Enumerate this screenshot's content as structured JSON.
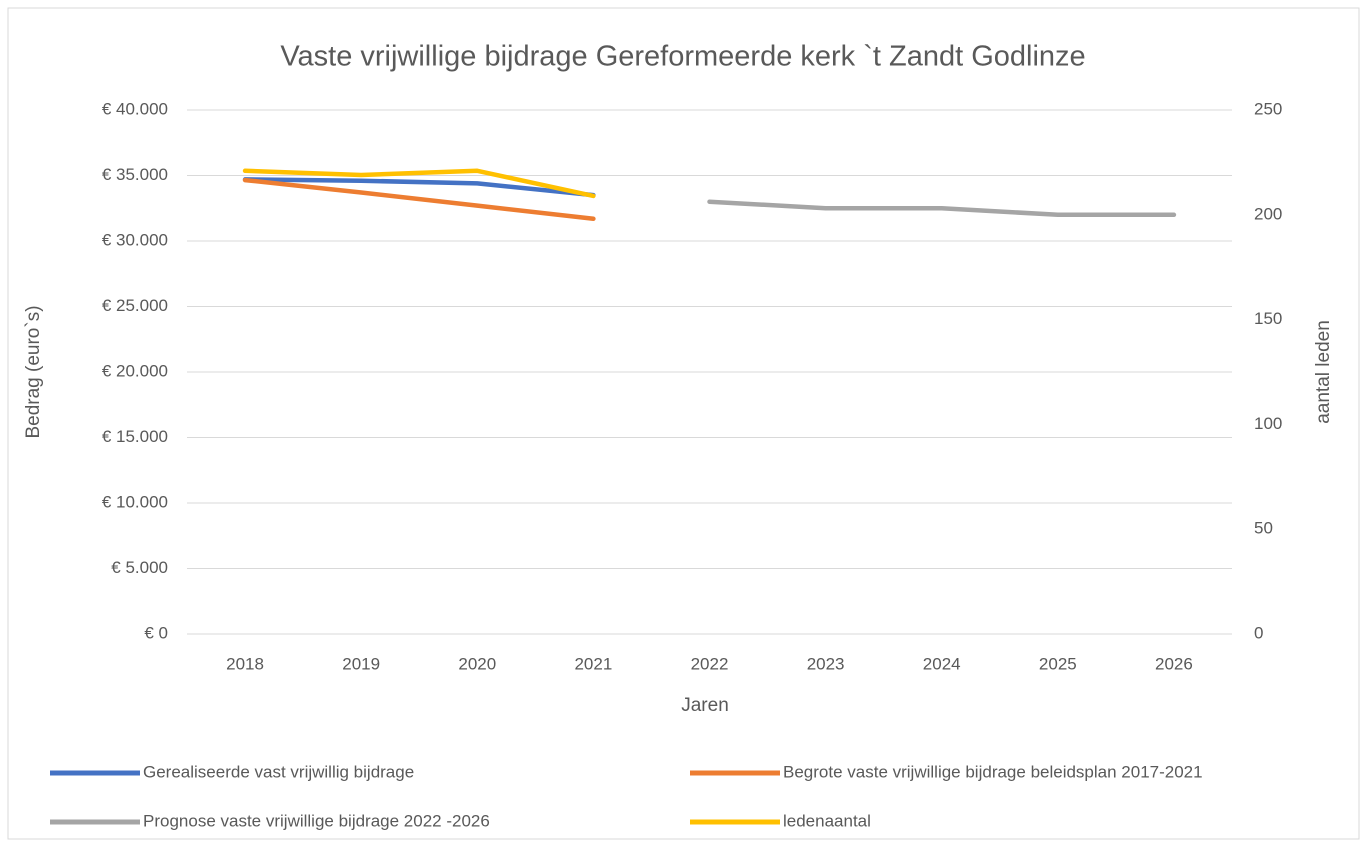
{
  "chart_data": {
    "type": "line",
    "title": "Vaste vrijwillige bijdrage Gereformeerde kerk `t Zandt Godlinze",
    "x_label": "Jaren",
    "y_label": "Bedrag (euro`s)",
    "y2_label": "aantal leden",
    "categories": [
      "2018",
      "2019",
      "2020",
      "2021",
      "2022",
      "2023",
      "2024",
      "2025",
      "2026"
    ],
    "series": [
      {
        "name": "Gerealiseerde vast vrijwillig bijdrage",
        "color": "#4472c4",
        "values": [
          34700,
          34600,
          34400,
          33500,
          null,
          null,
          null,
          null,
          null
        ]
      },
      {
        "name": "Begrote vaste vrijwillige bijdrage beleidsplan 2017-2021",
        "color": "#ed7d31",
        "values": [
          34650,
          33700,
          32700,
          31700,
          null,
          null,
          null,
          null,
          null
        ]
      },
      {
        "name": "Prognose vaste vrijwillige bijdrage 2022 -2026",
        "color": "#a5a5a5",
        "values": [
          null,
          null,
          null,
          null,
          33000,
          32500,
          32500,
          32000,
          32000
        ]
      },
      {
        "name": "ledenaantal",
        "color": "#ffc000",
        "axis": "y2",
        "values": [
          221,
          219,
          221,
          209,
          null,
          null,
          null,
          null,
          null
        ]
      }
    ],
    "ylim": [
      0,
      40000
    ],
    "yticks": [
      {
        "value": 0,
        "label": "€ 0"
      },
      {
        "value": 5000,
        "label": "€ 5.000"
      },
      {
        "value": 10000,
        "label": "€ 10.000"
      },
      {
        "value": 15000,
        "label": "€ 15.000"
      },
      {
        "value": 20000,
        "label": "€ 20.000"
      },
      {
        "value": 25000,
        "label": "€ 25.000"
      },
      {
        "value": 30000,
        "label": "€ 30.000"
      },
      {
        "value": 35000,
        "label": "€ 35.000"
      },
      {
        "value": 40000,
        "label": "€ 40.000"
      }
    ],
    "y2lim": [
      0,
      250
    ],
    "y2ticks": [
      0,
      50,
      100,
      150,
      200,
      250
    ],
    "grid": true,
    "legend": "bottom"
  }
}
